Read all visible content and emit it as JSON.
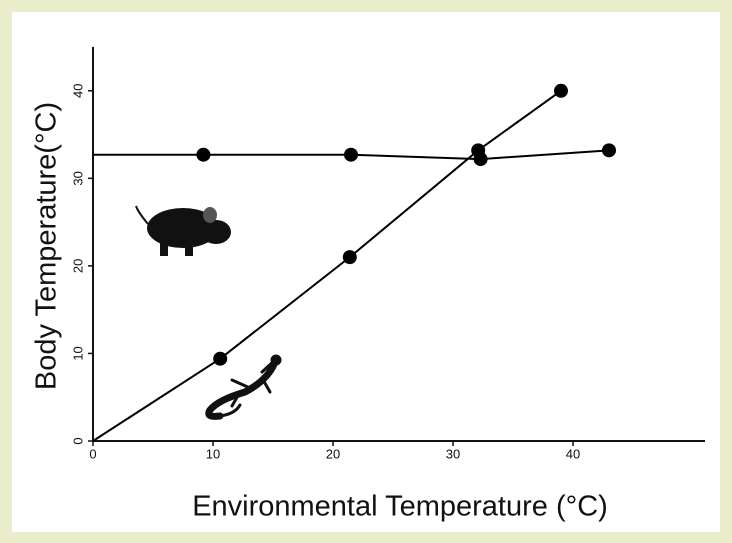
{
  "chart_data": {
    "type": "line",
    "xlabel": "Environmental Temperature (°C)",
    "ylabel": "Body Temperature(°C)",
    "series": [
      {
        "color": "#000000",
        "x": [
          9.2,
          21.5,
          32.3,
          43
        ],
        "values": [
          32.7,
          32.7,
          32.2,
          33.2
        ]
      },
      {
        "color": "#000000",
        "x": [
          10.6,
          21.4,
          32.1,
          39
        ],
        "values": [
          9.4,
          21,
          33.2,
          40
        ]
      }
    ],
    "xlim": [
      0,
      51
    ],
    "xticks": [
      0,
      10,
      20,
      30,
      40
    ],
    "ylim": [
      0,
      45
    ],
    "yticks": [
      0,
      10,
      20,
      30,
      40
    ]
  }
}
